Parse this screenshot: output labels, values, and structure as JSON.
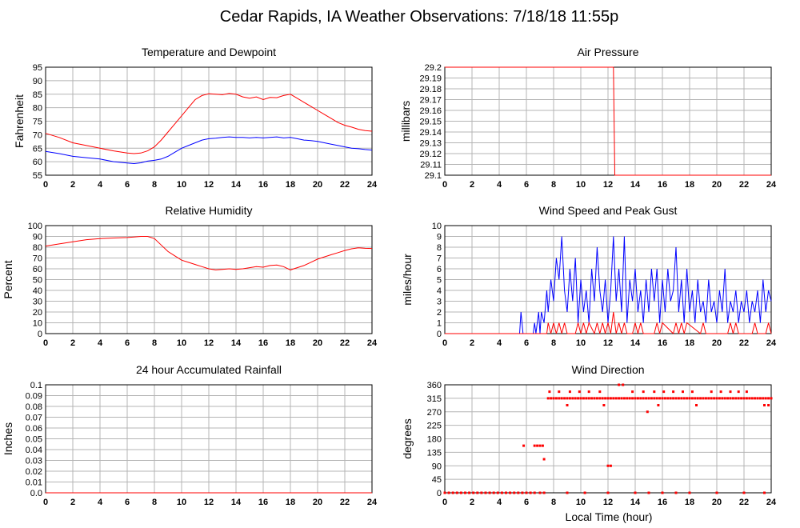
{
  "title": "Cedar Rapids, IA Weather Observations: 7/18/18 11:55p",
  "x_axis_label": "Local Time (hour)",
  "colors": {
    "red": "#ff0000",
    "blue": "#0000ff",
    "grid": "#b4b4b4"
  },
  "chart_data": [
    {
      "id": "temp",
      "type": "line",
      "title": "Temperature and Dewpoint",
      "ylabel": "Fahrenheit",
      "xlim": [
        0,
        24
      ],
      "ylim": [
        55,
        95
      ],
      "x_ticks": [
        0,
        2,
        4,
        6,
        8,
        10,
        12,
        14,
        16,
        18,
        20,
        22,
        24
      ],
      "y_ticks": [
        "55",
        "60",
        "65",
        "70",
        "75",
        "80",
        "85",
        "90",
        "95"
      ],
      "grid": true,
      "series": [
        {
          "color": "#ff0000",
          "x": [
            0,
            1,
            2,
            3,
            4,
            5,
            6,
            6.5,
            7,
            7.5,
            8,
            8.5,
            9,
            9.5,
            10,
            10.5,
            11,
            11.5,
            12,
            12.5,
            13,
            13.5,
            14,
            14.5,
            15,
            15.5,
            16,
            16.5,
            17,
            17.5,
            18,
            18.5,
            19,
            19.5,
            20,
            20.5,
            21,
            21.5,
            22,
            22.5,
            23,
            23.5,
            24
          ],
          "y": [
            70.5,
            69,
            67,
            66,
            65,
            64,
            63.2,
            63,
            63.2,
            64,
            65.5,
            68,
            71,
            74,
            77,
            80,
            83,
            84.5,
            85.2,
            85,
            84.8,
            85.3,
            85,
            84,
            83.5,
            84,
            83,
            83.8,
            83.7,
            84.5,
            85,
            83.5,
            82,
            80.5,
            79,
            77.5,
            76,
            74.5,
            73.5,
            72.8,
            72,
            71.5,
            71.3
          ]
        },
        {
          "color": "#0000ff",
          "x": [
            0,
            1,
            2,
            3,
            4,
            5,
            6,
            6.5,
            7,
            7.5,
            8,
            8.5,
            9,
            9.5,
            10,
            10.5,
            11,
            11.5,
            12,
            12.5,
            13,
            13.5,
            14,
            14.5,
            15,
            15.5,
            16,
            16.5,
            17,
            17.5,
            18,
            18.5,
            19,
            19.5,
            20,
            20.5,
            21,
            21.5,
            22,
            22.5,
            23,
            23.5,
            24
          ],
          "y": [
            63.8,
            63,
            62,
            61.5,
            61,
            60,
            59.5,
            59.3,
            59.6,
            60.2,
            60.5,
            61,
            62,
            63.5,
            65,
            66,
            67,
            68,
            68.5,
            68.7,
            69,
            69.2,
            69,
            69,
            68.8,
            69,
            68.8,
            69,
            69.2,
            68.8,
            69,
            68.5,
            68,
            67.8,
            67.5,
            67,
            66.5,
            66,
            65.5,
            65,
            64.8,
            64.5,
            64.3
          ]
        }
      ]
    },
    {
      "id": "pressure",
      "type": "line",
      "title": "Air Pressure",
      "ylabel": "millibars",
      "xlim": [
        0,
        24
      ],
      "ylim": [
        29.1,
        29.2
      ],
      "x_ticks": [
        0,
        2,
        4,
        6,
        8,
        10,
        12,
        14,
        16,
        18,
        20,
        22,
        24
      ],
      "y_ticks": [
        "29.1",
        "29.11",
        "29.12",
        "29.13",
        "29.14",
        "29.15",
        "29.16",
        "29.17",
        "29.18",
        "29.19",
        "29.2"
      ],
      "grid": true,
      "series": [
        {
          "color": "#ff0000",
          "x": [
            0,
            12.4,
            12.5,
            24
          ],
          "y": [
            29.2,
            29.2,
            29.1,
            29.1
          ]
        }
      ]
    },
    {
      "id": "rh",
      "type": "line",
      "title": "Relative Humidity",
      "ylabel": "Percent",
      "xlim": [
        0,
        24
      ],
      "ylim": [
        0,
        100
      ],
      "x_ticks": [
        0,
        2,
        4,
        6,
        8,
        10,
        12,
        14,
        16,
        18,
        20,
        22,
        24
      ],
      "y_ticks": [
        "0",
        "10",
        "20",
        "30",
        "40",
        "50",
        "60",
        "70",
        "80",
        "90",
        "100"
      ],
      "grid": true,
      "series": [
        {
          "color": "#ff0000",
          "x": [
            0,
            1,
            2,
            3,
            4,
            5,
            6,
            6.5,
            7,
            7.5,
            8,
            8.5,
            9,
            9.5,
            10,
            10.5,
            11,
            11.5,
            12,
            12.5,
            13,
            13.5,
            14,
            14.5,
            15,
            15.5,
            16,
            16.5,
            17,
            17.5,
            18,
            18.5,
            19,
            19.5,
            20,
            20.5,
            21,
            21.5,
            22,
            22.5,
            23,
            23.5,
            24
          ],
          "y": [
            81,
            83,
            85,
            87,
            88,
            88.5,
            89,
            89.5,
            90,
            90,
            88,
            82,
            76,
            72,
            68,
            66,
            64,
            62,
            60,
            59,
            59.5,
            60,
            59.5,
            60,
            61,
            62,
            61.5,
            63,
            63.5,
            62,
            59,
            61,
            63,
            66,
            69,
            71,
            73,
            75,
            77,
            78.5,
            79.5,
            79,
            78.8
          ]
        }
      ]
    },
    {
      "id": "wind",
      "type": "line",
      "title": "Wind Speed and Peak Gust",
      "ylabel": "miles/hour",
      "xlim": [
        0,
        24
      ],
      "ylim": [
        0,
        10
      ],
      "x_ticks": [
        0,
        2,
        4,
        6,
        8,
        10,
        12,
        14,
        16,
        18,
        20,
        22,
        24
      ],
      "y_ticks": [
        "0",
        "1",
        "2",
        "3",
        "4",
        "5",
        "6",
        "7",
        "8",
        "9",
        "10"
      ],
      "grid": true,
      "series": [
        {
          "color": "#0000ff",
          "x": [
            0,
            5.5,
            5.6,
            5.75,
            6.5,
            6.6,
            6.7,
            6.9,
            7.0,
            7.1,
            7.3,
            7.5,
            7.6,
            7.8,
            8.0,
            8.2,
            8.4,
            8.6,
            8.8,
            9.0,
            9.2,
            9.4,
            9.6,
            9.8,
            10.0,
            10.2,
            10.4,
            10.6,
            10.8,
            11.0,
            11.2,
            11.4,
            11.6,
            11.8,
            12.0,
            12.2,
            12.4,
            12.6,
            12.8,
            13.0,
            13.2,
            13.4,
            13.6,
            13.8,
            14.0,
            14.2,
            14.4,
            14.6,
            14.8,
            15.0,
            15.2,
            15.4,
            15.6,
            15.8,
            16.0,
            16.2,
            16.4,
            16.6,
            16.8,
            17.0,
            17.2,
            17.4,
            17.6,
            17.8,
            18.0,
            18.2,
            18.4,
            18.6,
            18.8,
            19.0,
            19.2,
            19.4,
            19.6,
            19.8,
            20.0,
            20.2,
            20.4,
            20.6,
            20.8,
            21.0,
            21.2,
            21.4,
            21.6,
            21.8,
            22.0,
            22.2,
            22.4,
            22.6,
            22.8,
            23.0,
            23.2,
            23.4,
            23.6,
            23.8,
            24.0
          ],
          "y": [
            0,
            0,
            2,
            0,
            0,
            1,
            0,
            2,
            0,
            2,
            1,
            4,
            2,
            5,
            3,
            7,
            5,
            9,
            4,
            2,
            6,
            3,
            7,
            1,
            5,
            2,
            4,
            1,
            6,
            3,
            8,
            4,
            2,
            5,
            1,
            4,
            9,
            3,
            6,
            2,
            9,
            1,
            5,
            3,
            6,
            2,
            4,
            1,
            5,
            2,
            6,
            3,
            6,
            1,
            5,
            2,
            6,
            3,
            4,
            8,
            2,
            5,
            1,
            6,
            2,
            4,
            1,
            5,
            2,
            3,
            1,
            5,
            2,
            3,
            1,
            4,
            2,
            6,
            1,
            3,
            2,
            4,
            1,
            3,
            2,
            4,
            1,
            3,
            2,
            4,
            1,
            5,
            2,
            4,
            3
          ]
        },
        {
          "color": "#ff0000",
          "x": [
            0,
            7.5,
            7.6,
            7.8,
            8.0,
            8.2,
            8.4,
            8.6,
            8.8,
            9.0,
            9.6,
            9.8,
            10.0,
            10.2,
            10.4,
            10.6,
            11.0,
            11.2,
            11.4,
            11.6,
            11.8,
            12.0,
            12.2,
            12.4,
            12.6,
            12.8,
            13.0,
            13.2,
            13.4,
            13.8,
            14.0,
            14.2,
            14.4,
            14.6,
            15.4,
            15.6,
            15.8,
            16.0,
            16.8,
            17.0,
            17.2,
            17.4,
            17.6,
            17.8,
            18.8,
            19.0,
            19.2,
            20.8,
            21.0,
            21.2,
            21.4,
            21.6,
            22.6,
            22.8,
            23.0,
            23.6,
            23.8,
            24.0
          ],
          "y": [
            0,
            0,
            1,
            0,
            1,
            0,
            1,
            0,
            1,
            0,
            0,
            1,
            0,
            1,
            0,
            1,
            0,
            1,
            0,
            1,
            0,
            1,
            0,
            2,
            0,
            1,
            0,
            1,
            0,
            0,
            1,
            0,
            1,
            0,
            0,
            1,
            0,
            1,
            0,
            1,
            0,
            1,
            0,
            1,
            0,
            1,
            0,
            0,
            1,
            0,
            1,
            0,
            0,
            1,
            0,
            0,
            1,
            0
          ]
        }
      ]
    },
    {
      "id": "rain",
      "type": "line",
      "title": "24 hour Accumulated Rainfall",
      "ylabel": "Inches",
      "xlim": [
        0,
        24
      ],
      "ylim": [
        0,
        0.1
      ],
      "x_ticks": [
        0,
        2,
        4,
        6,
        8,
        10,
        12,
        14,
        16,
        18,
        20,
        22,
        24
      ],
      "y_ticks": [
        "0.0",
        "0.01",
        "0.02",
        "0.03",
        "0.04",
        "0.05",
        "0.06",
        "0.07",
        "0.08",
        "0.09",
        "0.1"
      ],
      "grid": true,
      "series": [
        {
          "color": "#ff0000",
          "x": [
            0,
            24
          ],
          "y": [
            0,
            0
          ]
        }
      ]
    },
    {
      "id": "winddir",
      "type": "scatter",
      "title": "Wind Direction",
      "ylabel": "degrees",
      "xlabel": "Local Time (hour)",
      "xlim": [
        0,
        24
      ],
      "ylim": [
        0,
        360
      ],
      "x_ticks": [
        0,
        2,
        4,
        6,
        8,
        10,
        12,
        14,
        16,
        18,
        20,
        22,
        24
      ],
      "y_ticks": [
        "0",
        "45",
        "90",
        "135",
        "180",
        "225",
        "270",
        "315",
        "360"
      ],
      "grid": true,
      "series": [
        {
          "color": "#ff0000",
          "x": [
            0,
            0.3,
            0.6,
            0.9,
            1.2,
            1.5,
            1.8,
            2.1,
            2.4,
            2.7,
            3.0,
            3.3,
            3.6,
            3.9,
            4.2,
            4.5,
            4.8,
            5.1,
            5.4,
            5.7,
            6.0,
            6.3,
            6.6,
            7.0,
            7.3,
            5.8,
            6.6,
            6.8,
            7.0,
            7.2,
            7.3,
            7.6,
            7.8,
            8.0,
            8.2,
            8.4,
            8.6,
            8.8,
            9.0,
            9.2,
            9.4,
            9.6,
            9.8,
            10.0,
            10.2,
            10.4,
            10.6,
            10.8,
            11.0,
            11.2,
            11.4,
            11.6,
            11.8,
            12.0,
            12.2,
            12.4,
            12.6,
            12.8,
            13.0,
            13.2,
            13.4,
            13.6,
            13.8,
            14.0,
            14.2,
            14.4,
            14.6,
            14.8,
            15.0,
            15.2,
            15.4,
            15.6,
            15.8,
            16.0,
            16.2,
            16.4,
            16.6,
            16.8,
            17.0,
            17.2,
            17.4,
            17.6,
            17.8,
            18.0,
            18.2,
            18.4,
            18.6,
            18.8,
            19.0,
            19.2,
            19.4,
            19.6,
            19.8,
            20.0,
            20.2,
            20.4,
            20.6,
            20.8,
            21.0,
            21.2,
            21.4,
            21.6,
            21.8,
            22.0,
            22.2,
            22.4,
            22.6,
            22.8,
            23.0,
            23.2,
            23.4,
            23.6,
            23.8,
            24.0,
            7.7,
            8.4,
            9.2,
            9.9,
            10.6,
            11.4,
            12.8,
            13.1,
            13.8,
            14.6,
            15.4,
            16.1,
            16.8,
            17.5,
            18.2,
            19.6,
            20.3,
            21.0,
            21.6,
            22.2,
            12.0,
            12.2,
            9.0,
            11.7,
            14.9,
            15.7,
            18.5,
            23.5,
            23.8,
            9.0,
            10.3,
            12.0,
            14.0,
            15.0,
            16.0,
            17.0,
            18.0,
            20.0,
            22.0,
            23.5
          ],
          "y": [
            0,
            0,
            0,
            0,
            0,
            0,
            0,
            0,
            0,
            0,
            0,
            0,
            0,
            0,
            0,
            0,
            0,
            0,
            0,
            0,
            0,
            0,
            0,
            0,
            0,
            157,
            157,
            157,
            157,
            157,
            112,
            315,
            315,
            315,
            315,
            315,
            315,
            315,
            315,
            315,
            315,
            315,
            315,
            315,
            315,
            315,
            315,
            315,
            315,
            315,
            315,
            315,
            315,
            315,
            315,
            315,
            315,
            315,
            315,
            315,
            315,
            315,
            315,
            315,
            315,
            315,
            315,
            315,
            315,
            315,
            315,
            315,
            315,
            315,
            315,
            315,
            315,
            315,
            315,
            315,
            315,
            315,
            315,
            315,
            315,
            315,
            315,
            315,
            315,
            315,
            315,
            315,
            315,
            315,
            315,
            315,
            315,
            315,
            315,
            315,
            315,
            315,
            315,
            315,
            315,
            315,
            315,
            315,
            315,
            315,
            315,
            315,
            315,
            315,
            337,
            337,
            337,
            337,
            337,
            337,
            360,
            360,
            337,
            337,
            337,
            337,
            337,
            337,
            337,
            337,
            337,
            337,
            337,
            337,
            90,
            90,
            292,
            292,
            270,
            292,
            292,
            292,
            292,
            0,
            0,
            0,
            0,
            0,
            0,
            0,
            0,
            0,
            0,
            0
          ]
        }
      ]
    }
  ]
}
